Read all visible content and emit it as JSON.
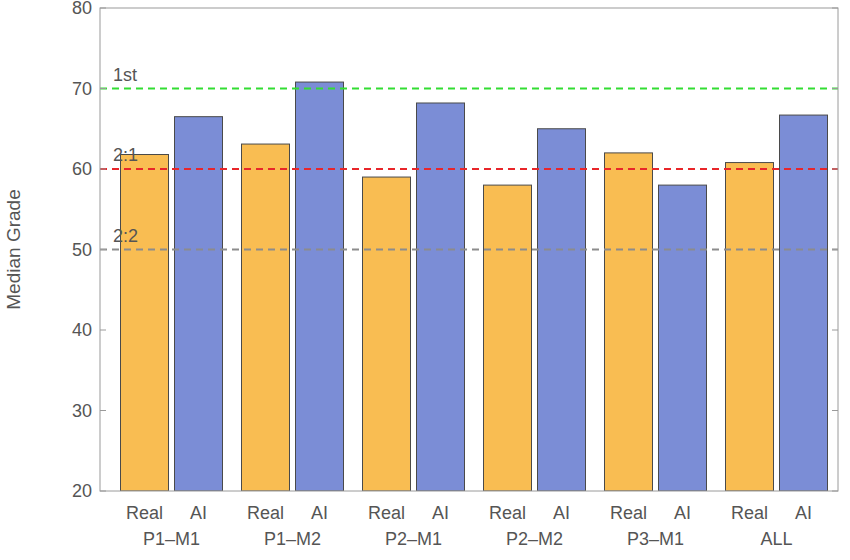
{
  "chart_data": {
    "type": "bar",
    "y_label": "Median Grade",
    "categories": [
      "P1–M1",
      "P1–M2",
      "P2–M1",
      "P2–M2",
      "P3–M1",
      "ALL"
    ],
    "series": [
      {
        "name": "Real",
        "color": "#f9bd52",
        "values": [
          61.8,
          63.1,
          59.0,
          58.0,
          62.0,
          60.8
        ]
      },
      {
        "name": "AI",
        "color": "#7b8dd6",
        "values": [
          66.5,
          70.8,
          68.2,
          65.0,
          58.0,
          66.7
        ]
      }
    ],
    "ylim": [
      20,
      80
    ],
    "yticks": [
      20,
      30,
      40,
      50,
      60,
      70,
      80
    ],
    "grid": false,
    "reference_lines": [
      {
        "value": 70,
        "label": "1st",
        "color": "#33dd33"
      },
      {
        "value": 60,
        "label": "2:1",
        "color": "#e8262a"
      },
      {
        "value": 50,
        "label": "2:2",
        "color": "#8c8c8c"
      }
    ]
  }
}
